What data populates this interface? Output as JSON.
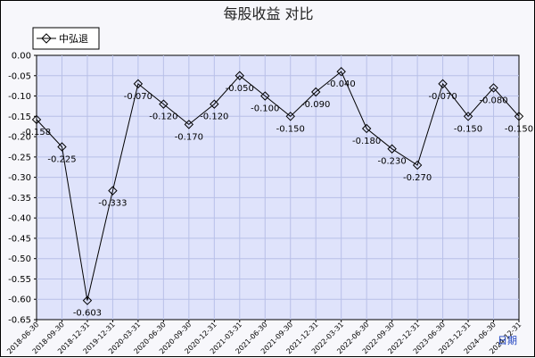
{
  "chart_data": {
    "type": "line",
    "title": "每股收益  对比",
    "xlabel": "日期",
    "ylabel": "",
    "ylim": [
      -0.65,
      0.0
    ],
    "yticks": [
      0.0,
      -0.05,
      -0.1,
      -0.15,
      -0.2,
      -0.25,
      -0.3,
      -0.35,
      -0.4,
      -0.45,
      -0.5,
      -0.55,
      -0.6,
      -0.65
    ],
    "grid": true,
    "legend_position": "top-left",
    "categories": [
      "2018-06-30",
      "2018-09-30",
      "2018-12-31",
      "2019-12-31",
      "2020-03-31",
      "2020-06-30",
      "2020-09-30",
      "2020-12-31",
      "2021-03-31",
      "2021-06-30",
      "2021-09-30",
      "2021-12-31",
      "2022-03-31",
      "2022-06-30",
      "2022-09-30",
      "2022-12-31",
      "2023-06-30",
      "2023-12-31",
      "2024-06-30",
      "2024-12-31"
    ],
    "series": [
      {
        "name": "中弘退",
        "color": "#000000",
        "values": [
          -0.158,
          -0.225,
          -0.603,
          -0.333,
          -0.07,
          -0.12,
          -0.17,
          -0.12,
          -0.05,
          -0.1,
          -0.15,
          -0.09,
          -0.04,
          -0.18,
          -0.23,
          -0.27,
          -0.07,
          -0.15,
          -0.08,
          -0.15
        ],
        "data_labels": [
          "-0.158",
          "-0.225",
          "-0.603",
          "-0.333",
          "-0.070",
          "-0.120",
          "-0.170",
          "-0.120",
          "-0.050",
          "-0.100",
          "-0.150",
          "-0.090",
          "-0.040",
          "-0.180",
          "-0.230",
          "-0.270",
          "-0.070",
          "-0.150",
          "-0.080",
          "-0.150"
        ]
      }
    ],
    "colors": {
      "plot_background": "#dfe3fb",
      "grid": "#b8c0e8",
      "line": "#000000",
      "xlabel": "#1a3fbf"
    }
  }
}
